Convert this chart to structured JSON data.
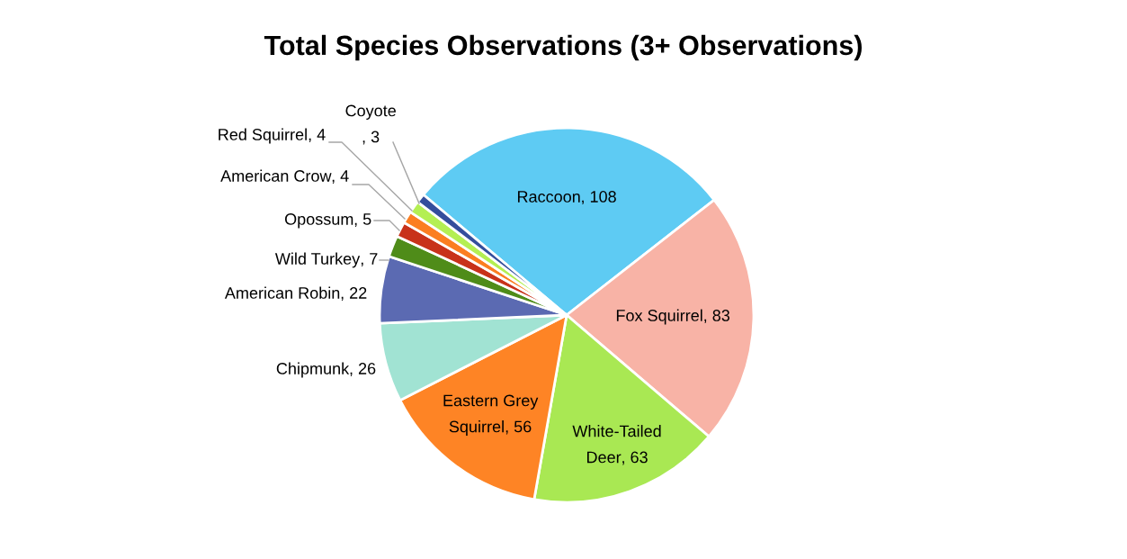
{
  "chart_data": {
    "type": "pie",
    "title": "Total Species Observations (3+ Observations)",
    "categories": [
      "Raccoon",
      "Fox Squirrel",
      "White-Tailed Deer",
      "Eastern Grey Squirrel",
      "Chipmunk",
      "American Robin",
      "Wild Turkey",
      "Opossum",
      "American Crow",
      "Red Squirrel",
      "Coyote"
    ],
    "values": [
      108,
      83,
      63,
      56,
      26,
      22,
      7,
      5,
      4,
      4,
      3
    ],
    "colors": [
      "#5ecbf3",
      "#f8b3a6",
      "#a9e853",
      "#fe8425",
      "#a1e3d3",
      "#5b6ab2",
      "#4f8c19",
      "#c8321a",
      "#fb7e21",
      "#b4ef53",
      "#344e9c"
    ],
    "value_labels": [
      ", 108",
      ", 83",
      ", 63",
      ", 56",
      ", 26",
      ", 22",
      ", 7",
      ", 5",
      ", 4",
      ", 4",
      ", 3"
    ],
    "legend": false
  }
}
